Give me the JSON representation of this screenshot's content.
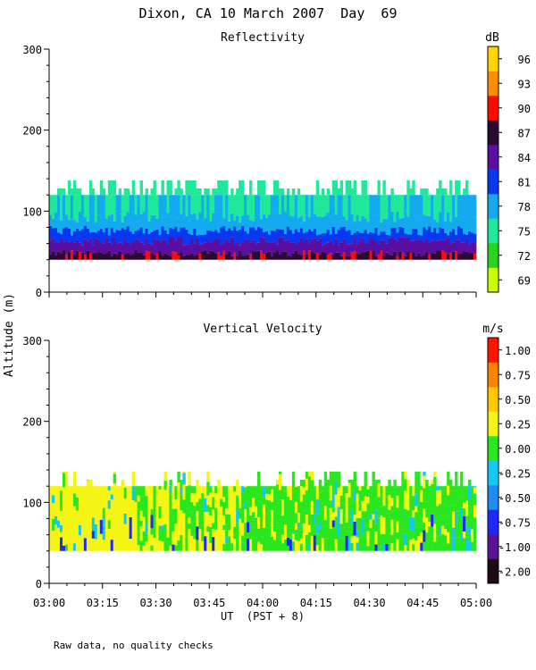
{
  "figure": {
    "title": "Dixon, CA 10 March 2007  Day  69",
    "y_axis_label": "Altitude (m)",
    "x_axis_label": "UT  (PST + 8)",
    "footnote": "Raw data, no quality checks"
  },
  "chart_data": [
    {
      "type": "heatmap",
      "title": "Reflectivity",
      "units": "dB",
      "xlabel": "UT  (PST + 8)",
      "ylabel": "Altitude (m)",
      "ylim": [
        0,
        300
      ],
      "y_ticks": [
        "0",
        "100",
        "200",
        "300"
      ],
      "xlim": [
        "03:00",
        "05:00"
      ],
      "data_altitude_range_m": [
        40,
        138
      ],
      "colorbar": {
        "colors": [
          "#c8ff00",
          "#2ad41e",
          "#1ee89a",
          "#14aaf0",
          "#0a37f0",
          "#5a0fa0",
          "#2a0a32",
          "#ff0a00",
          "#ff8c00",
          "#ffd400"
        ],
        "labels": [
          "69",
          "72",
          "75",
          "78",
          "81",
          "84",
          "87",
          "90",
          "93",
          "96"
        ]
      }
    },
    {
      "type": "heatmap",
      "title": "Vertical Velocity",
      "units": "m/s",
      "xlabel": "UT  (PST + 8)",
      "ylabel": "Altitude (m)",
      "ylim": [
        0,
        300
      ],
      "y_ticks": [
        "0",
        "100",
        "200",
        "300"
      ],
      "xlim": [
        "03:00",
        "05:00"
      ],
      "x_ticks": [
        "03:00",
        "03:15",
        "03:30",
        "03:45",
        "04:00",
        "04:15",
        "04:30",
        "04:45",
        "05:00"
      ],
      "data_altitude_range_m": [
        40,
        138
      ],
      "colorbar": {
        "colors": [
          "#1e0a14",
          "#5a1496",
          "#1e28ff",
          "#1e8cf0",
          "#14c8f5",
          "#2ae61e",
          "#f5f514",
          "#ffc800",
          "#ff8200",
          "#ff1400"
        ],
        "labels": [
          "-2.00",
          "-1.00",
          "-0.75",
          "-0.50",
          "-0.25",
          "0.00",
          "0.25",
          "0.50",
          "0.75",
          "1.00"
        ]
      }
    }
  ]
}
